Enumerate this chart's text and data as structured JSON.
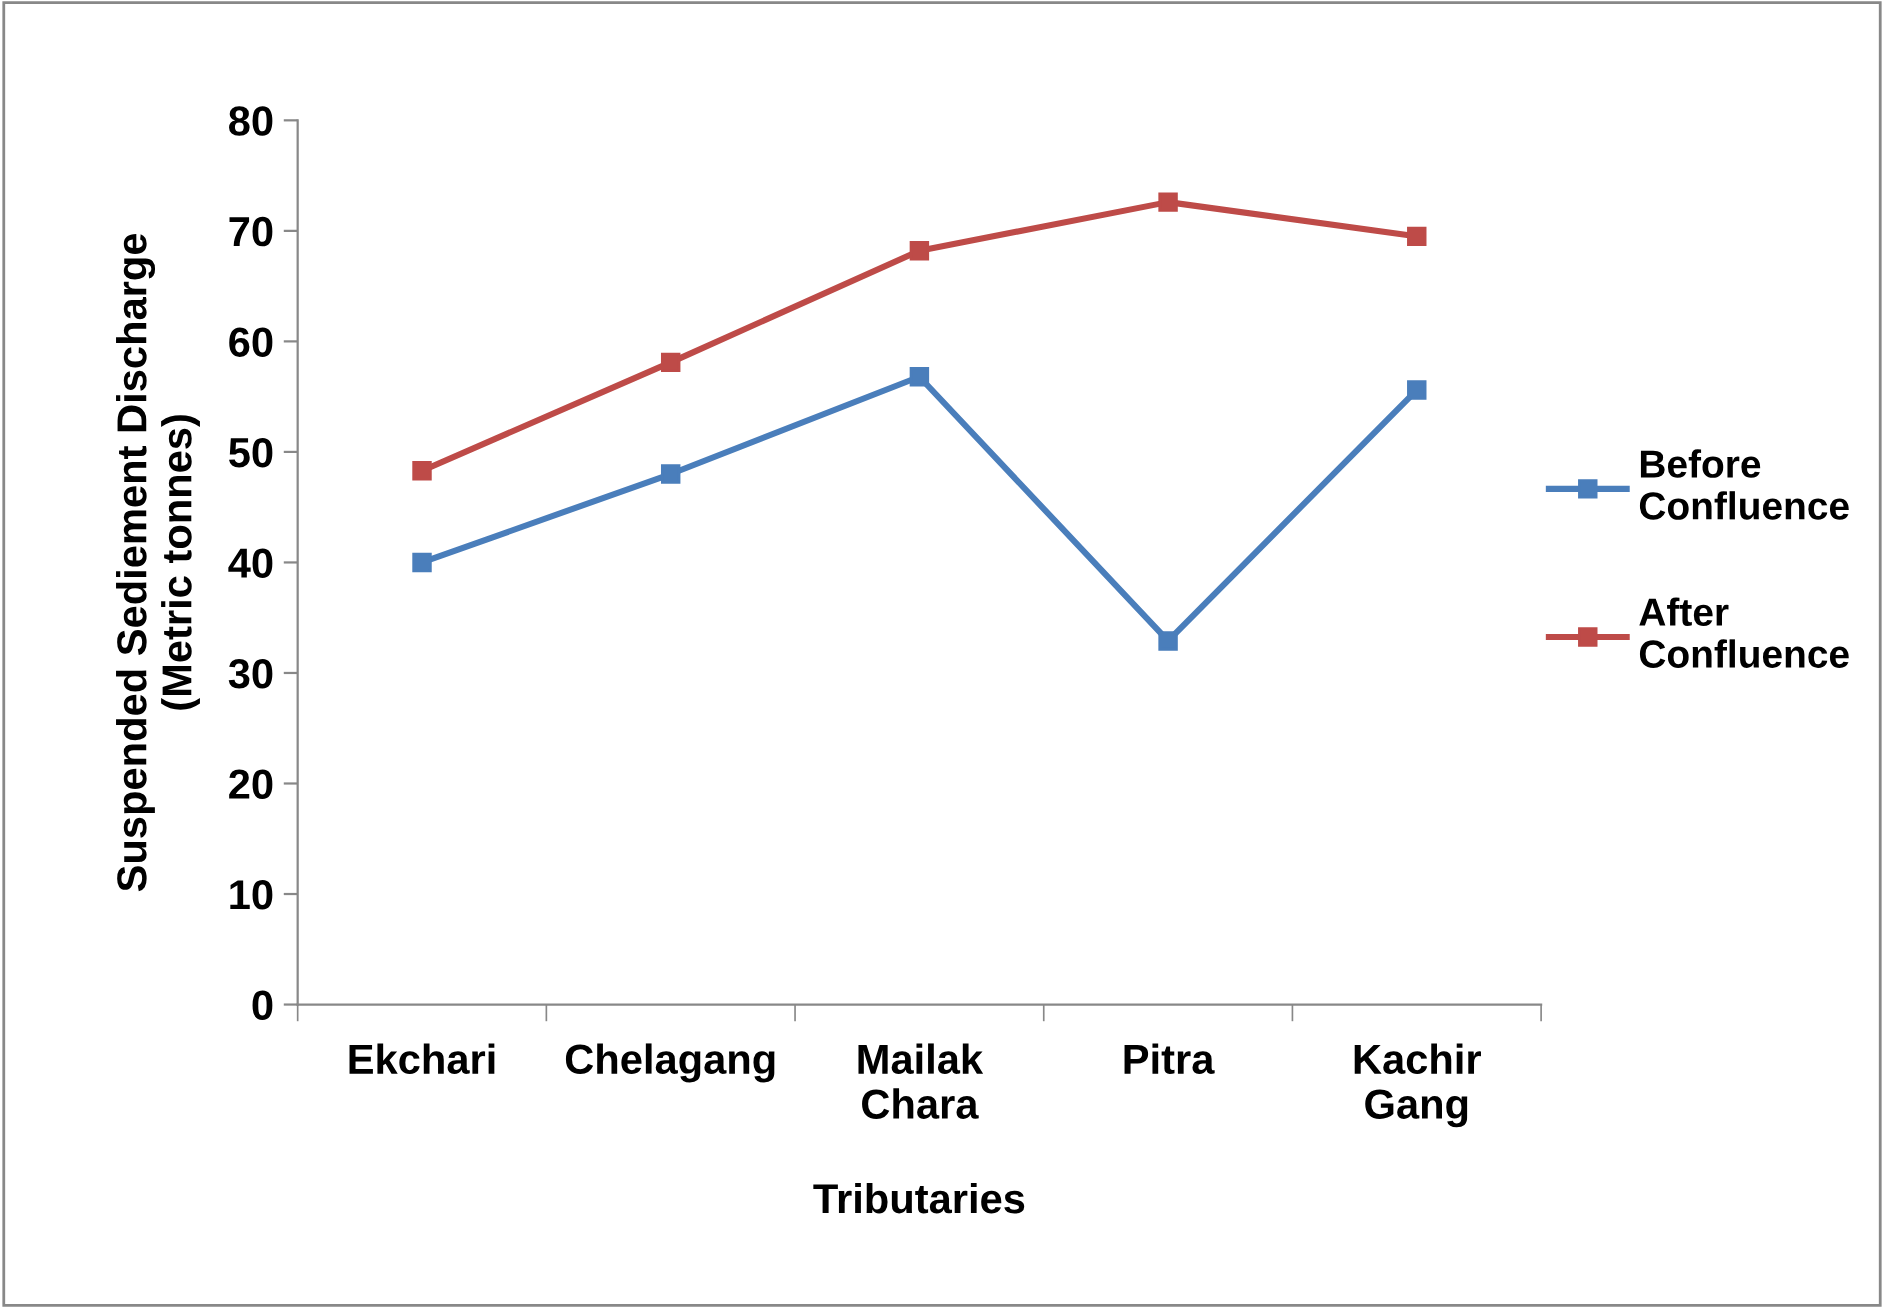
{
  "chart_data": {
    "type": "line",
    "xlabel": "Tributaries",
    "ylabel": "Suspended Sediement Discharge\n(Metric tonnes)",
    "categories": [
      "Ekchari",
      "Chelagang",
      "Mailak Chara",
      "Pitra",
      "Kachir Gang"
    ],
    "series": [
      {
        "name": "Before Confluence",
        "color": "#4a7ebb",
        "values": [
          40.0,
          48.0,
          56.8,
          32.9,
          55.6
        ]
      },
      {
        "name": "After Confluence",
        "color": "#be4b48",
        "values": [
          48.3,
          58.1,
          68.2,
          72.6,
          69.5
        ]
      }
    ],
    "ylim": [
      0,
      80
    ],
    "yticks": [
      0,
      10,
      20,
      30,
      40,
      50,
      60,
      70,
      80
    ],
    "marker": "square",
    "line_style": "solid",
    "grid": false,
    "legend": "right"
  }
}
